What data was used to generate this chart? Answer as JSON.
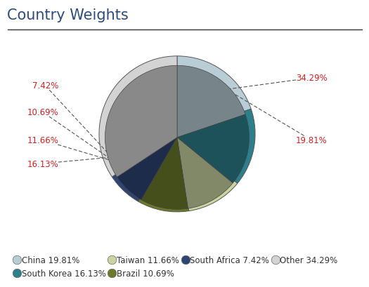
{
  "title": "Country Weights",
  "title_color": "#2E4D7B",
  "title_fontsize": 15,
  "slices": [
    {
      "label": "China",
      "pct": 19.81,
      "color": "#B8CDD6"
    },
    {
      "label": "South Korea",
      "pct": 16.13,
      "color": "#2E7F8C"
    },
    {
      "label": "Taiwan",
      "pct": 11.66,
      "color": "#C9D4A0"
    },
    {
      "label": "Brazil",
      "pct": 10.69,
      "color": "#6B7A2A"
    },
    {
      "label": "South Africa",
      "pct": 7.42,
      "color": "#2E4472"
    },
    {
      "label": "Other",
      "pct": 34.29,
      "color": "#D3D3D3"
    }
  ],
  "annotation_color": "#CC2222",
  "annotation_fontsize": 8.5,
  "legend_fontsize": 8.5,
  "legend_text_color": "#333333",
  "background_color": "#FFFFFF",
  "title_line_color": "#333333",
  "startangle": 90,
  "shadow_color": "#AAAAAA",
  "edge_color": "#555555",
  "depth_color_factor": 0.6
}
